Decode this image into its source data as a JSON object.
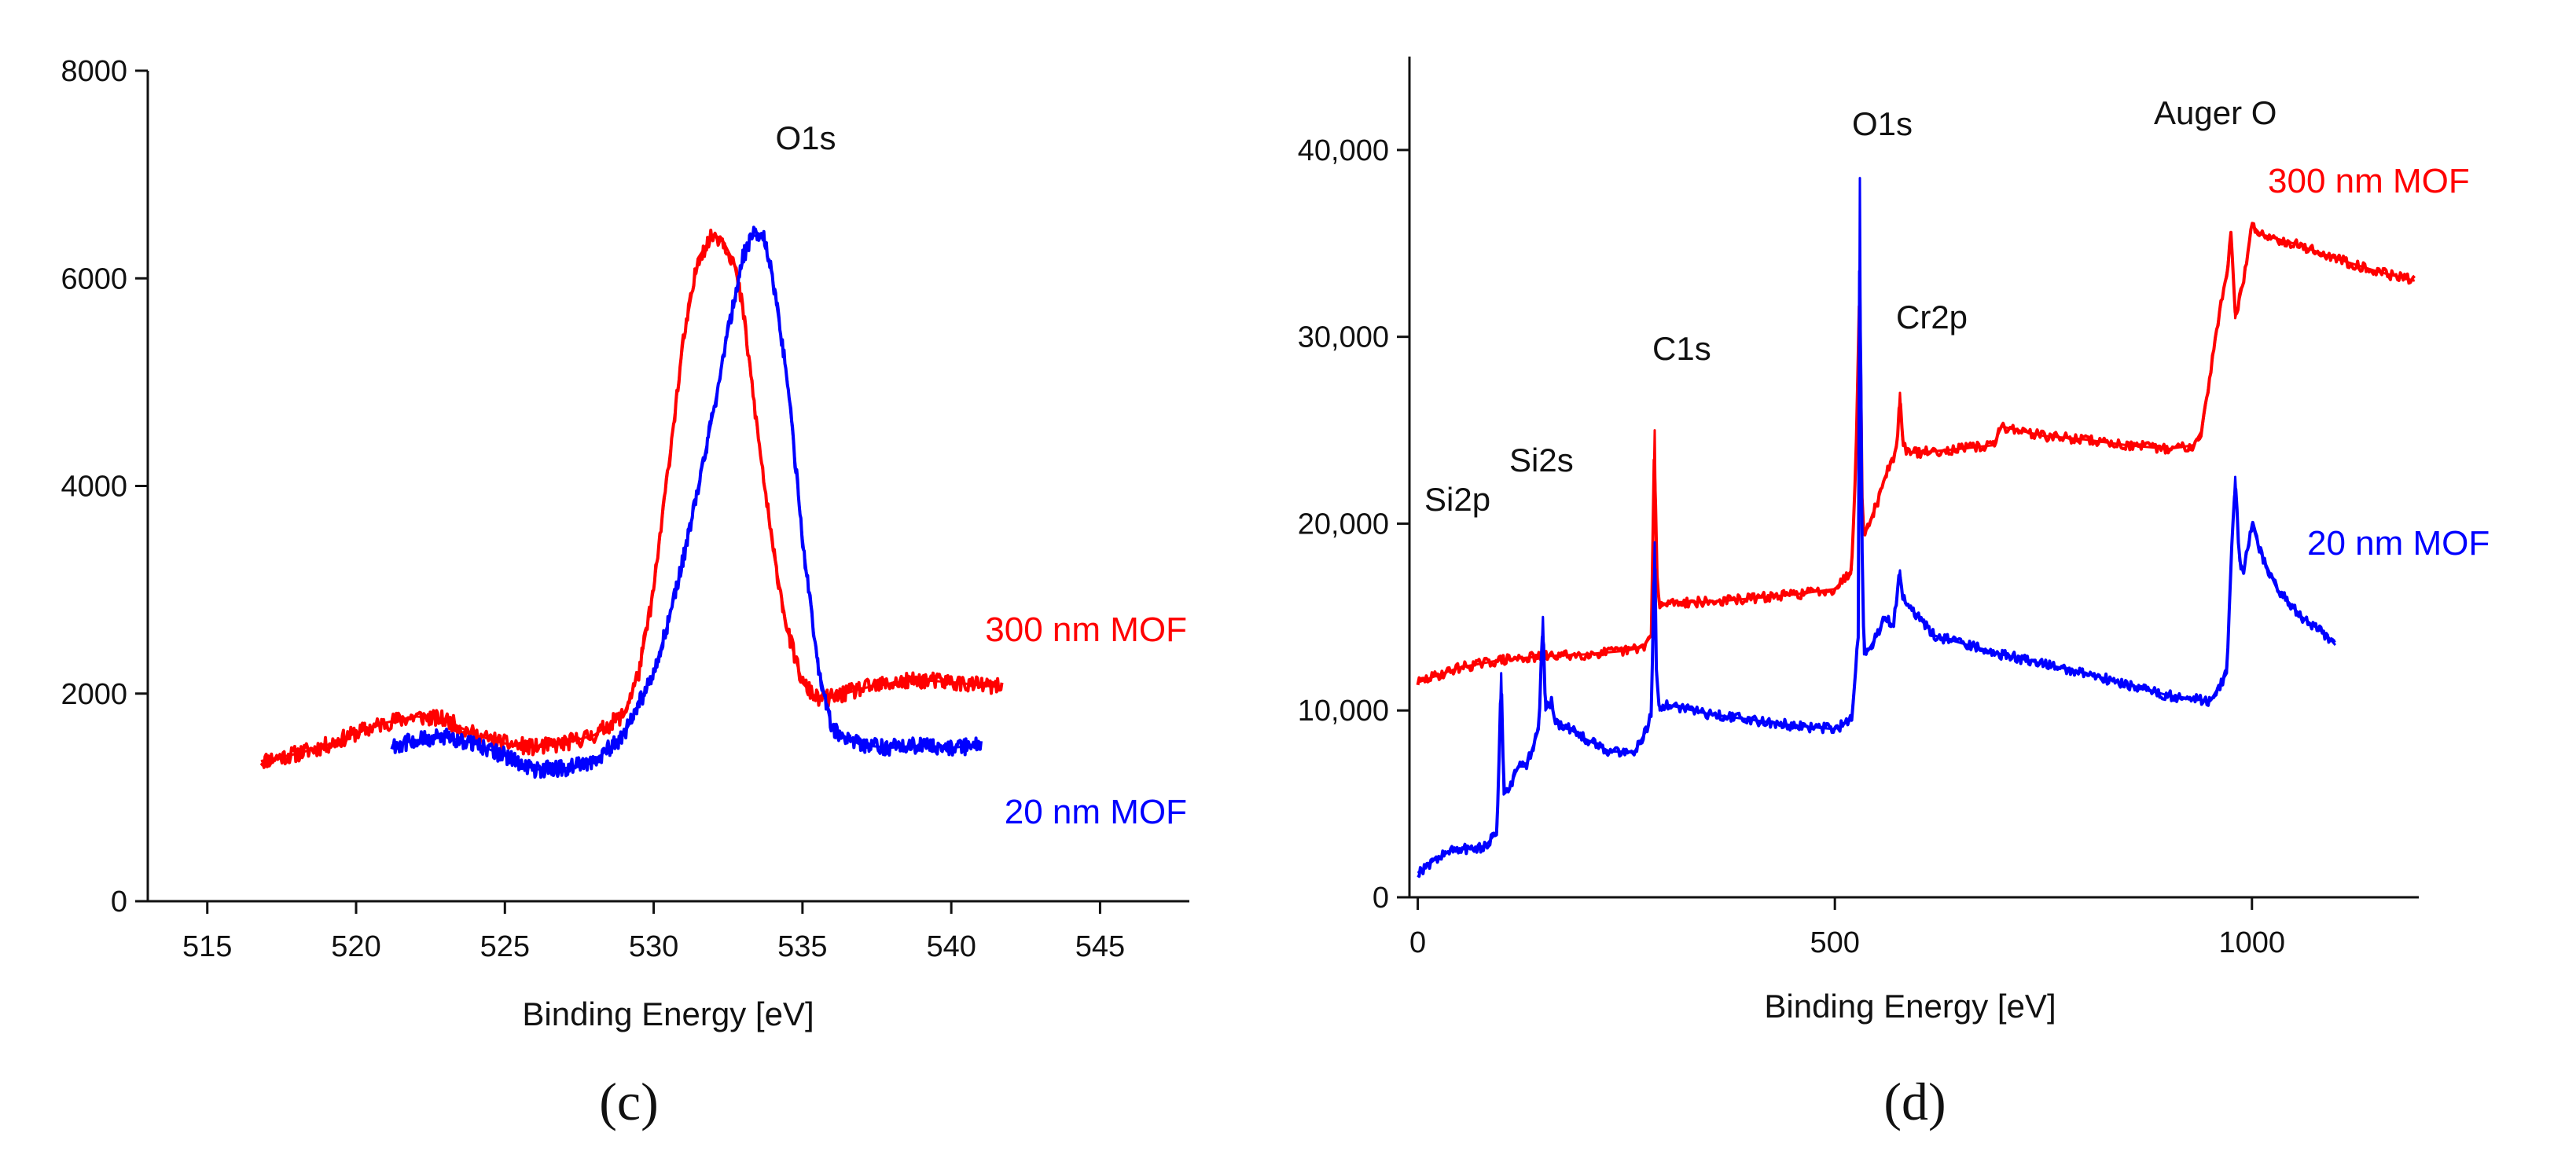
{
  "chart_data": [
    {
      "panel_label": "(c)",
      "type": "line",
      "title": "",
      "xlabel": "Binding Energy [eV]",
      "ylabel": "",
      "xlim": [
        513,
        548
      ],
      "ylim": [
        0,
        8000
      ],
      "xticks": [
        "515",
        "520",
        "525",
        "530",
        "535",
        "540",
        "545"
      ],
      "yticks": [
        "0",
        "2000",
        "4000",
        "6000",
        "8000"
      ],
      "annotations": [
        "O1s"
      ],
      "series": [
        {
          "name": "300 nm MOF",
          "color": "#ff0000",
          "x": [
            516.8,
            518,
            519,
            520,
            521,
            522,
            523,
            524,
            525,
            526,
            527,
            528,
            529,
            529.5,
            530,
            530.5,
            531,
            531.5,
            532,
            532.3,
            532.7,
            533,
            533.5,
            534,
            534.5,
            535,
            535.5,
            536,
            537,
            538,
            539,
            540,
            541,
            541.7
          ],
          "y": [
            1350,
            1420,
            1500,
            1620,
            1720,
            1780,
            1750,
            1600,
            1520,
            1480,
            1520,
            1600,
            1800,
            2200,
            3000,
            4200,
            5400,
            6200,
            6420,
            6380,
            6150,
            5700,
            4500,
            3400,
            2600,
            2100,
            1950,
            1960,
            2050,
            2100,
            2130,
            2110,
            2080,
            2060
          ]
        },
        {
          "name": "20 nm MOF",
          "color": "#0000ff",
          "x": [
            521.2,
            522,
            523,
            524,
            525,
            526,
            527,
            528,
            529,
            530,
            530.5,
            531,
            531.5,
            532,
            532.5,
            533,
            533.3,
            533.7,
            534,
            534.5,
            535,
            535.5,
            536,
            537,
            538,
            539,
            540,
            541
          ],
          "y": [
            1500,
            1550,
            1580,
            1520,
            1400,
            1270,
            1280,
            1350,
            1600,
            2200,
            2700,
            3300,
            4000,
            4700,
            5500,
            6200,
            6420,
            6380,
            6000,
            5000,
            3500,
            2300,
            1650,
            1500,
            1480,
            1500,
            1480,
            1500
          ]
        }
      ]
    },
    {
      "panel_label": "(d)",
      "type": "line",
      "title": "",
      "xlabel": "Binding Energy [eV]",
      "ylabel": "",
      "xlim": [
        -10,
        1200
      ],
      "ylim": [
        0,
        45000
      ],
      "xticks": [
        "0",
        "500",
        "1000"
      ],
      "yticks": [
        "0",
        "10,000",
        "20,000",
        "30,000",
        "40,000"
      ],
      "annotations": [
        "Si2p",
        "Si2s",
        "C1s",
        "O1s",
        "Cr2p",
        "Auger O"
      ],
      "series": [
        {
          "name": "300 nm MOF",
          "color": "#ff0000",
          "x": [
            0,
            50,
            100,
            150,
            200,
            250,
            270,
            280,
            284,
            286,
            290,
            300,
            350,
            400,
            450,
            500,
            520,
            525,
            530,
            532,
            535,
            540,
            545,
            550,
            560,
            570,
            575,
            578,
            581,
            585,
            590,
            600,
            650,
            690,
            700,
            750,
            800,
            850,
            900,
            930,
            940,
            950,
            960,
            970,
            975,
            980,
            990,
            1000,
            1010,
            1050,
            1100,
            1150,
            1195
          ],
          "y": [
            11500,
            12300,
            12700,
            12900,
            13000,
            13200,
            13400,
            14000,
            25000,
            17500,
            15500,
            15800,
            15800,
            16000,
            16200,
            16500,
            17500,
            23000,
            33500,
            22000,
            19500,
            19800,
            20500,
            21000,
            22500,
            23500,
            24500,
            27000,
            24500,
            24000,
            23800,
            23800,
            24000,
            24200,
            25200,
            24700,
            24500,
            24200,
            24000,
            24200,
            25000,
            28000,
            31000,
            33500,
            35500,
            31000,
            33000,
            36000,
            35500,
            35000,
            34200,
            33500,
            33000
          ]
        },
        {
          "name": "20 nm MOF",
          "color": "#0000ff",
          "x": [
            0,
            20,
            40,
            60,
            80,
            95,
            100,
            103,
            110,
            120,
            130,
            145,
            150,
            153,
            160,
            165,
            175,
            200,
            230,
            260,
            275,
            280,
            284,
            286,
            290,
            300,
            350,
            400,
            450,
            500,
            520,
            528,
            530,
            532,
            535,
            540,
            550,
            560,
            570,
            578,
            581,
            590,
            620,
            700,
            800,
            900,
            950,
            970,
            975,
            980,
            985,
            990,
            1000,
            1010,
            1030,
            1060,
            1090,
            1100
          ],
          "y": [
            1300,
            2000,
            2500,
            2600,
            2700,
            3500,
            12000,
            5500,
            5800,
            7000,
            7000,
            9000,
            15000,
            10000,
            10500,
            9300,
            9200,
            8500,
            7800,
            7800,
            9000,
            10000,
            19000,
            12000,
            10000,
            10300,
            9800,
            9500,
            9200,
            9000,
            9500,
            14000,
            38500,
            20000,
            13000,
            13200,
            14000,
            15000,
            14500,
            17500,
            16000,
            15500,
            14000,
            13000,
            12000,
            10800,
            10500,
            12000,
            18000,
            22500,
            18000,
            17500,
            20000,
            18500,
            16500,
            15000,
            14000,
            13500
          ]
        }
      ]
    }
  ]
}
